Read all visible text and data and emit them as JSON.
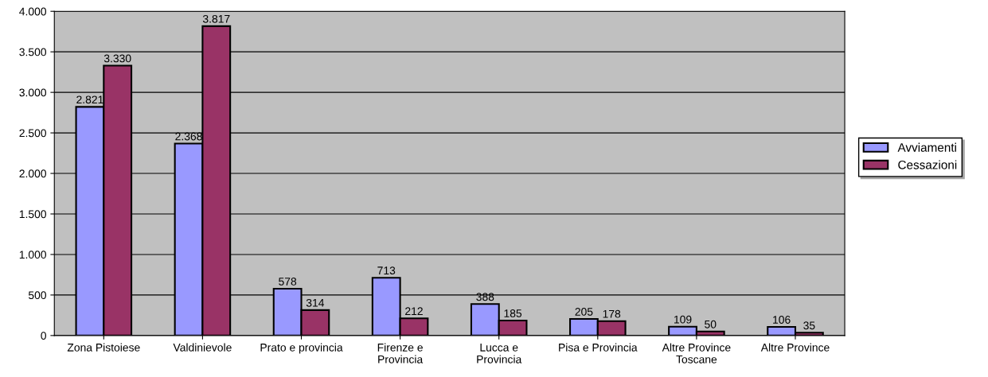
{
  "chart_data": {
    "type": "bar",
    "categories": [
      "Zona Pistoiese",
      "Valdinievole",
      "Prato e provincia",
      "Firenze e\nProvincia",
      "Lucca e\nProvincia",
      "Pisa e Provincia",
      "Altre Province\nToscane",
      "Altre Province"
    ],
    "series": [
      {
        "name": "Avviamenti",
        "color": "#9999ff",
        "values": [
          2821,
          2368,
          578,
          713,
          388,
          205,
          109,
          106
        ],
        "value_labels": [
          "2.821",
          "2.368",
          "578",
          "713",
          "388",
          "205",
          "109",
          "106"
        ]
      },
      {
        "name": "Cessazioni",
        "color": "#993366",
        "values": [
          3330,
          3817,
          314,
          212,
          185,
          178,
          50,
          35
        ],
        "value_labels": [
          "3.330",
          "3.817",
          "314",
          "212",
          "185",
          "178",
          "50",
          "35"
        ]
      }
    ],
    "ylim": [
      0,
      4000
    ],
    "yticks": [
      {
        "value": 0,
        "label": "0"
      },
      {
        "value": 500,
        "label": "500"
      },
      {
        "value": 1000,
        "label": "1.000"
      },
      {
        "value": 1500,
        "label": "1.500"
      },
      {
        "value": 2000,
        "label": "2.000"
      },
      {
        "value": 2500,
        "label": "2.500"
      },
      {
        "value": 3000,
        "label": "3.000"
      },
      {
        "value": 3500,
        "label": "3.500"
      },
      {
        "value": 4000,
        "label": "4.000"
      }
    ],
    "grid": "y",
    "legend": "right"
  }
}
